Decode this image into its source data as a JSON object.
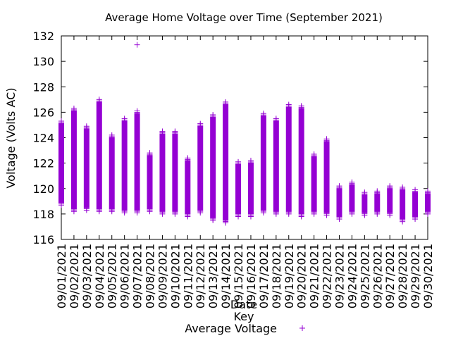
{
  "chart_data": {
    "type": "scatter",
    "title": "Average Home Voltage over Time (September 2021)",
    "xlabel": "Date",
    "ylabel": "Voltage (Volts AC)",
    "ylim": [
      116,
      132
    ],
    "yticks": [
      116,
      118,
      120,
      122,
      124,
      126,
      128,
      130,
      132
    ],
    "grid": false,
    "legend": {
      "title": "Key",
      "placement": "bottom-center"
    },
    "categories": [
      "09/01/2021",
      "09/02/2021",
      "09/03/2021",
      "09/04/2021",
      "09/05/2021",
      "09/06/2021",
      "09/07/2021",
      "09/08/2021",
      "09/09/2021",
      "09/10/2021",
      "09/11/2021",
      "09/12/2021",
      "09/13/2021",
      "09/14/2021",
      "09/15/2021",
      "09/16/2021",
      "09/17/2021",
      "09/18/2021",
      "09/19/2021",
      "09/20/2021",
      "09/21/2021",
      "09/22/2021",
      "09/23/2021",
      "09/24/2021",
      "09/25/2021",
      "09/26/2021",
      "09/27/2021",
      "09/28/2021",
      "09/29/2021",
      "09/30/2021"
    ],
    "series": [
      {
        "name": "Average Voltage",
        "color": "#9400d3",
        "marker": "+",
        "daily_min": [
          118.7,
          118.2,
          118.3,
          118.2,
          118.2,
          118.1,
          118.1,
          118.2,
          118.0,
          118.0,
          117.8,
          118.1,
          117.5,
          117.3,
          117.8,
          117.8,
          118.1,
          118.0,
          118.0,
          117.8,
          118.0,
          117.9,
          117.6,
          118.0,
          117.9,
          118.0,
          117.9,
          117.4,
          117.6,
          118.0
        ],
        "daily_max": [
          125.3,
          126.3,
          124.9,
          127.0,
          124.2,
          125.5,
          126.1,
          122.8,
          124.5,
          124.5,
          122.4,
          125.1,
          125.8,
          126.8,
          122.1,
          122.2,
          125.9,
          125.5,
          126.6,
          126.5,
          122.7,
          123.9,
          120.2,
          120.5,
          119.7,
          119.8,
          120.2,
          120.1,
          119.9,
          119.8
        ],
        "outliers": [
          {
            "x": "09/07/2021",
            "y": 131.3
          }
        ]
      }
    ]
  }
}
